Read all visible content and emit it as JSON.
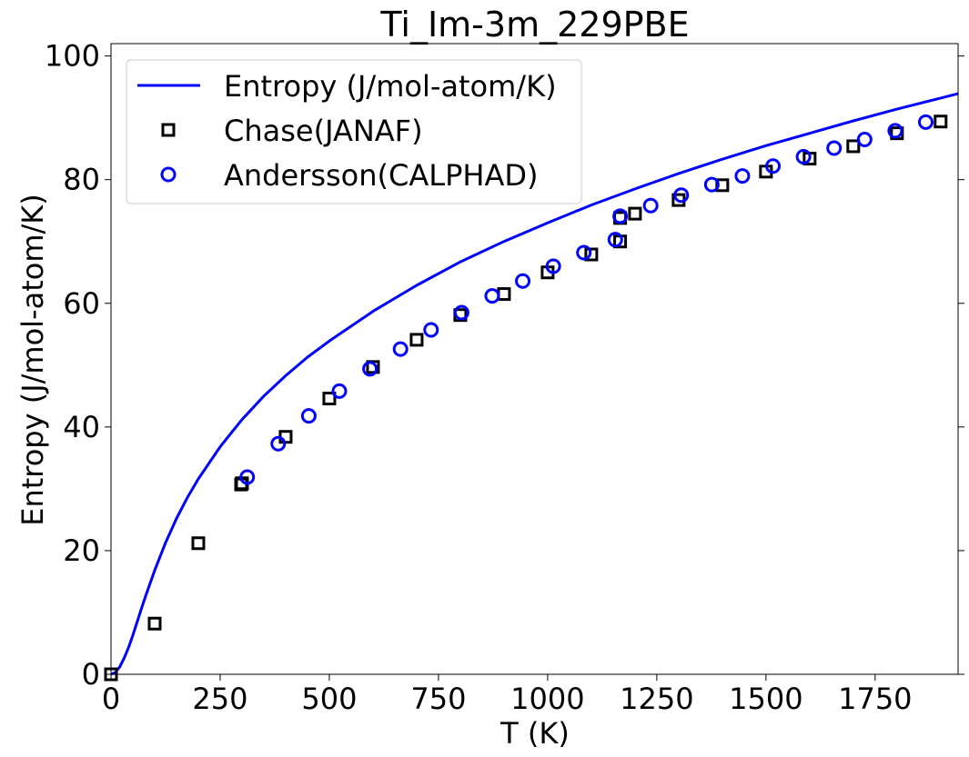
{
  "chart_data": {
    "type": "line",
    "title": "Ti_Im-3m_229PBE",
    "xlabel": "T (K)",
    "ylabel": "Entropy (J/mol-atom/K)",
    "xlim": [
      0,
      1940
    ],
    "ylim": [
      0,
      102
    ],
    "xticks": [
      0,
      250,
      500,
      750,
      1000,
      1250,
      1500,
      1750
    ],
    "yticks": [
      0,
      20,
      40,
      60,
      80,
      100
    ],
    "grid": false,
    "legend_position": "top-left",
    "series": [
      {
        "name": "Entropy (J/mol-atom/K)",
        "kind": "line",
        "color": "#0000ff",
        "x": [
          0,
          10,
          20,
          30,
          40,
          50,
          60,
          70,
          80,
          100,
          125,
          150,
          175,
          200,
          250,
          300,
          350,
          400,
          450,
          500,
          600,
          700,
          800,
          900,
          1000,
          1100,
          1200,
          1300,
          1400,
          1500,
          1600,
          1700,
          1800,
          1900,
          1940
        ],
        "y": [
          0,
          0.3,
          1.2,
          2.6,
          4.3,
          6.3,
          8.5,
          10.7,
          12.8,
          16.8,
          21.3,
          25.2,
          28.6,
          31.6,
          36.8,
          41.2,
          45.0,
          48.3,
          51.3,
          53.9,
          58.7,
          62.9,
          66.7,
          70.0,
          73.0,
          75.9,
          78.5,
          81.0,
          83.3,
          85.5,
          87.5,
          89.5,
          91.4,
          93.2,
          93.9
        ]
      },
      {
        "name": "Chase(JANAF)",
        "kind": "scatter",
        "marker": "square",
        "color": "#000000",
        "x": [
          0,
          100,
          200,
          298,
          300,
          400,
          500,
          600,
          700,
          800,
          900,
          1000,
          1100,
          1166,
          1166,
          1200,
          1300,
          1400,
          1500,
          1600,
          1700,
          1800,
          1900
        ],
        "y": [
          0,
          8.2,
          21.2,
          30.7,
          30.9,
          38.4,
          44.6,
          49.7,
          54.1,
          58.1,
          61.5,
          65.0,
          67.9,
          70.0,
          73.8,
          74.5,
          76.7,
          79.1,
          81.3,
          83.4,
          85.4,
          87.5,
          89.4
        ]
      },
      {
        "name": "Andersson(CALPHAD)",
        "kind": "scatter",
        "marker": "circle",
        "color": "#0000ff",
        "x": [
          312,
          383,
          453,
          523,
          593,
          663,
          733,
          803,
          873,
          943,
          1013,
          1083,
          1155,
          1166,
          1236,
          1306,
          1376,
          1446,
          1516,
          1586,
          1656,
          1726,
          1796,
          1866
        ],
        "y": [
          31.9,
          37.3,
          41.8,
          45.8,
          49.4,
          52.6,
          55.7,
          58.5,
          61.2,
          63.6,
          66.0,
          68.2,
          70.3,
          74.1,
          75.8,
          77.5,
          79.2,
          80.6,
          82.2,
          83.7,
          85.1,
          86.5,
          87.9,
          89.3
        ]
      }
    ]
  }
}
